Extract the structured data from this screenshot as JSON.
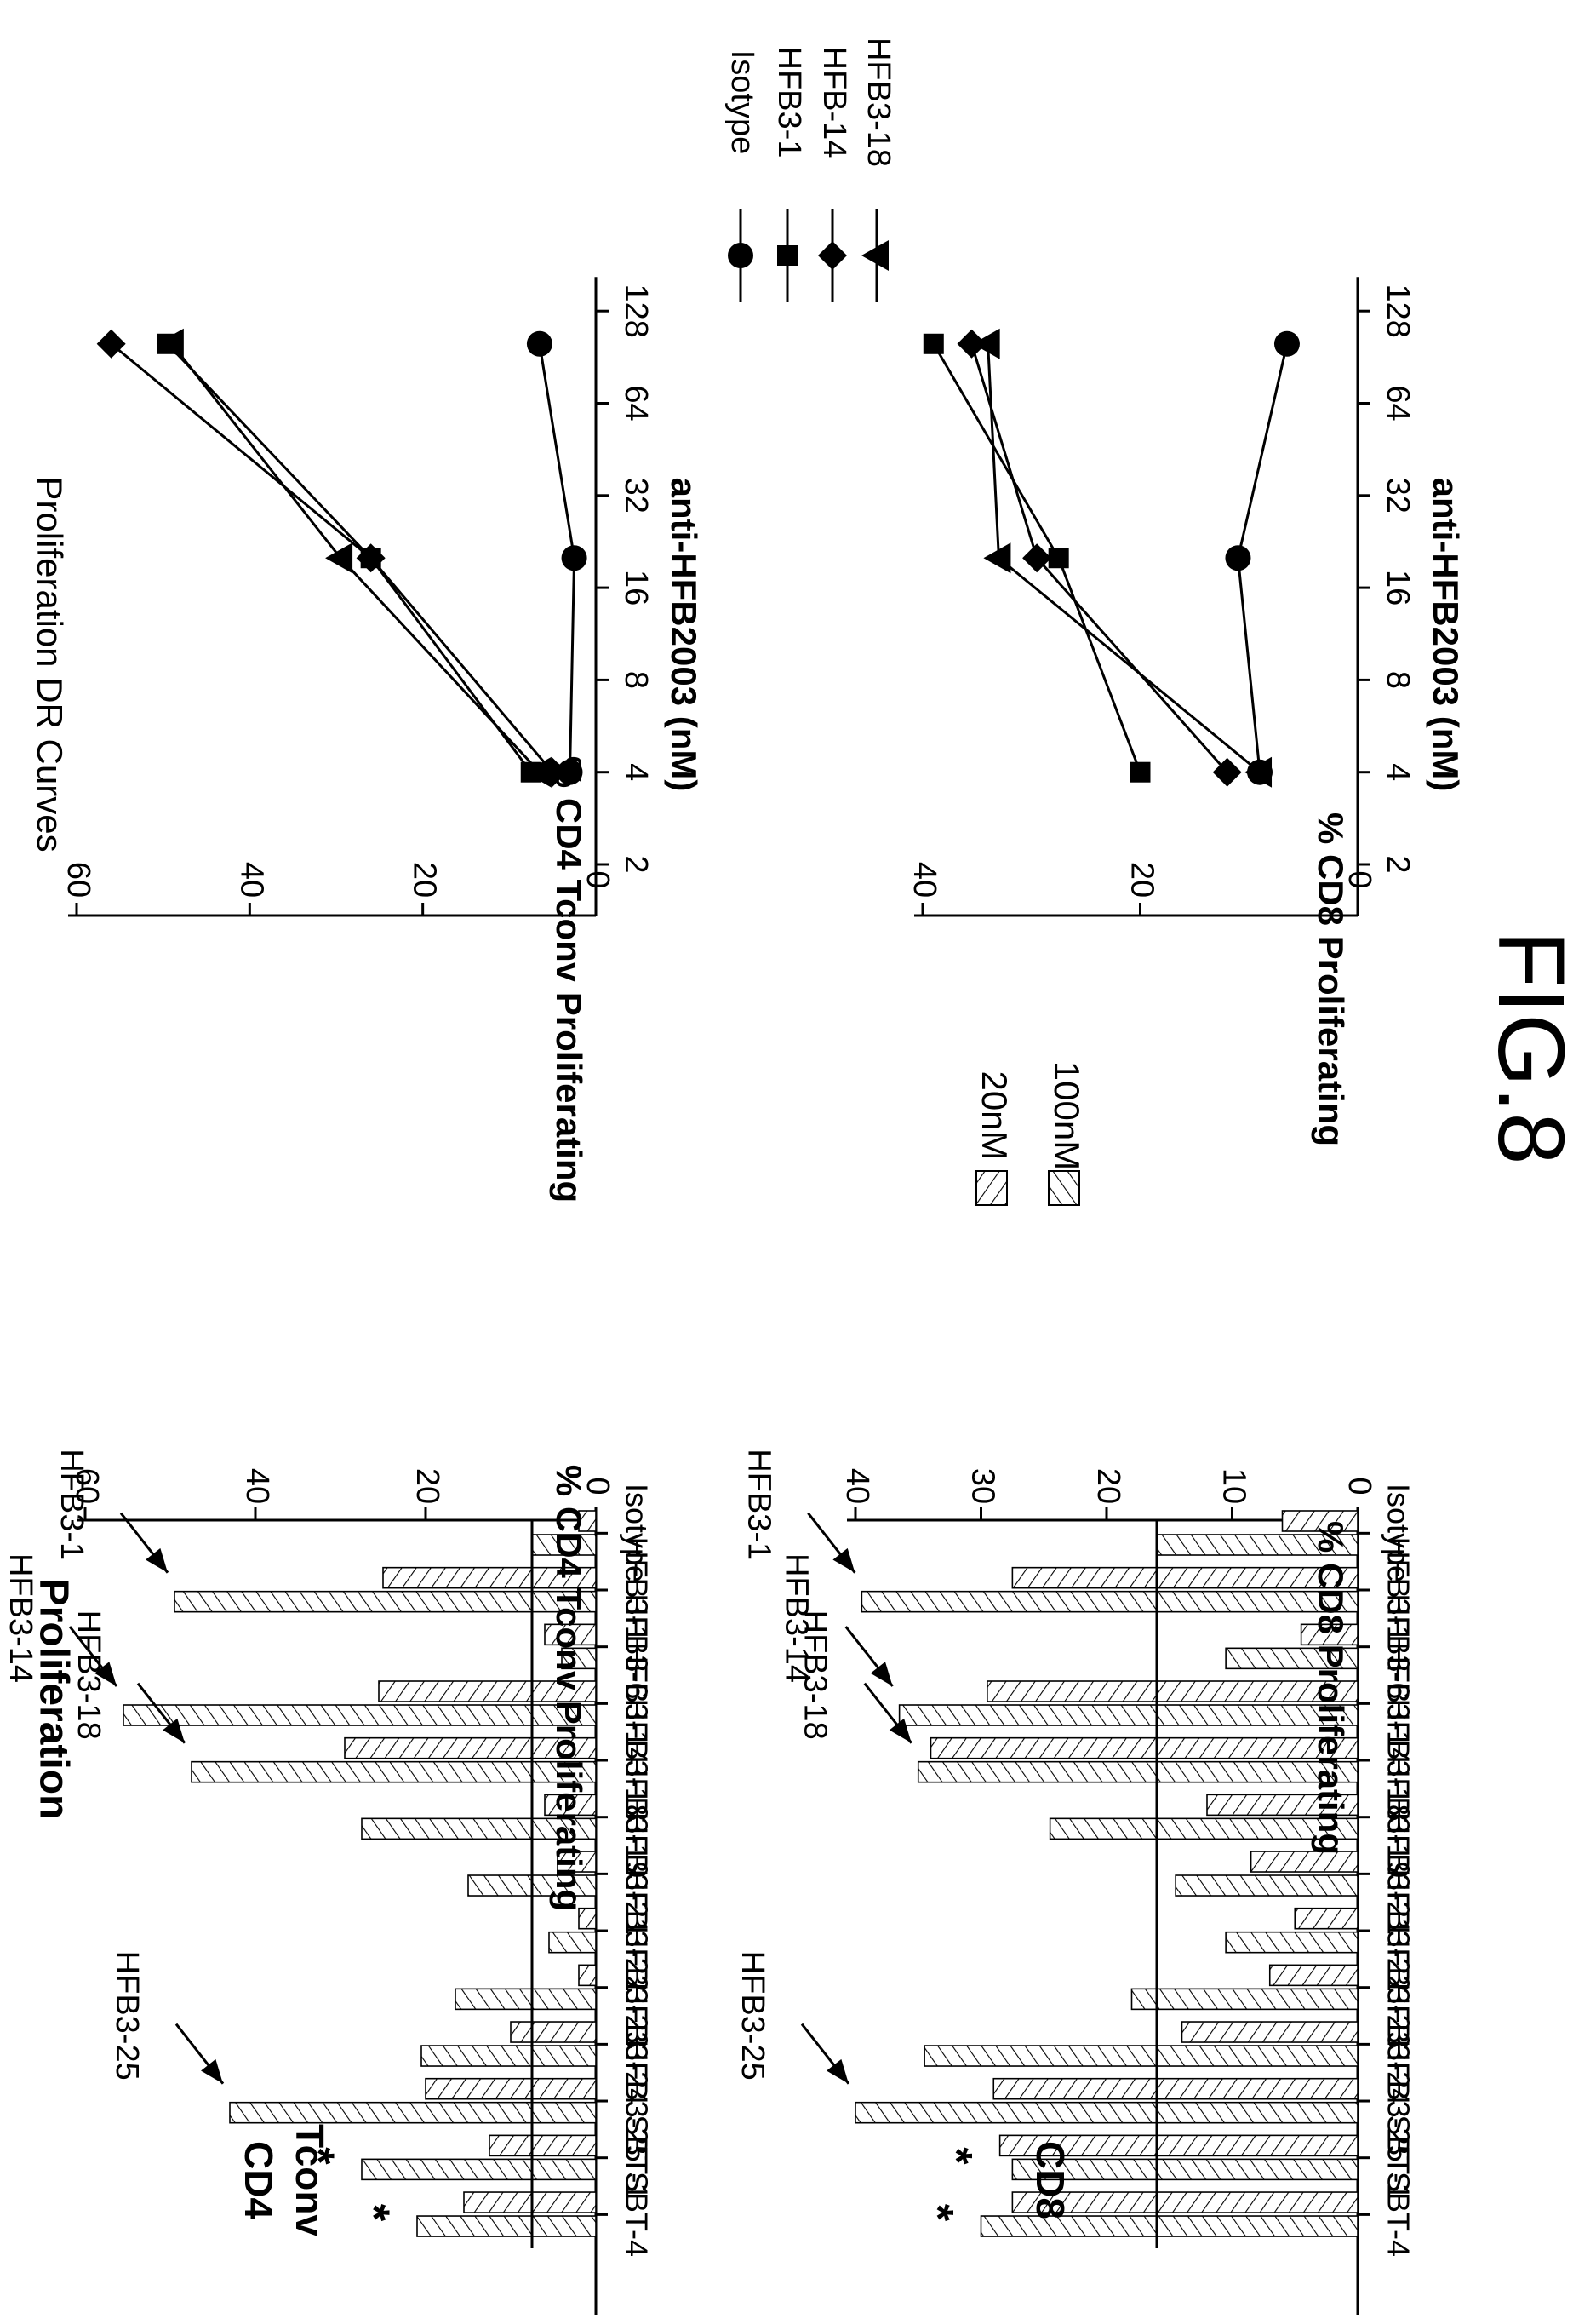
{
  "figure_label": "FIG.8",
  "panel_titles": {
    "bar": "Proliferation",
    "dr": "Proliferation DR Curves",
    "cd4_row": [
      "CD4",
      "Tconv"
    ],
    "cd8_row": "CD8"
  },
  "bar_legend": [
    {
      "label": "20nM",
      "pattern": "hatch-a"
    },
    {
      "label": "100nM",
      "pattern": "hatch-b"
    }
  ],
  "bar_categories": [
    "Isotype",
    "HFB3-1",
    "HFB3-6",
    "HFB3-14",
    "HFB3-18",
    "HFB3-19",
    "HFB3-21",
    "HFB3-22",
    "HFB3-23",
    "HFB3-24",
    "HFB3-25",
    "SBT-1",
    "SBT-4"
  ],
  "asterisk": "*",
  "dr_series_names": [
    "Isotype",
    "HFB3-1",
    "HFB-14",
    "HFB3-18"
  ],
  "chart_data": [
    {
      "type": "bar",
      "panel": "CD4 Tconv Proliferation",
      "ylabel": "% CD4 Tconv Proliferating",
      "ylim": [
        0,
        60
      ],
      "yticks": [
        0,
        20,
        40,
        60
      ],
      "reference_line": 7.5,
      "categories": [
        "Isotype",
        "HFB3-1",
        "HFB3-6",
        "HFB3-14",
        "HFB3-18",
        "HFB3-19",
        "HFB3-21",
        "HFB3-22",
        "HFB3-23",
        "HFB3-24",
        "HFB3-25",
        "SBT-1",
        "SBT-4"
      ],
      "series": [
        {
          "name": "20nM",
          "values": [
            2,
            25,
            6,
            25.5,
            29.5,
            6,
            4.5,
            2,
            2,
            10,
            20,
            12.5,
            15.5
          ]
        },
        {
          "name": "100nM",
          "values": [
            7.5,
            49.5,
            4,
            55.5,
            47.5,
            27.5,
            15,
            5.5,
            16.5,
            20.5,
            43,
            27.5,
            21
          ]
        }
      ],
      "annotations": [
        {
          "text": "HFB3-1",
          "category": "HFB3-1"
        },
        {
          "text": "HFB3-14",
          "category": "HFB3-14"
        },
        {
          "text": "HFB3-18",
          "category": "HFB3-18"
        },
        {
          "text": "HFB3-25",
          "category": "HFB3-25"
        },
        {
          "text": "*",
          "category": "SBT-1"
        },
        {
          "text": "*",
          "category": "SBT-4"
        }
      ]
    },
    {
      "type": "bar",
      "panel": "CD8 Proliferation",
      "ylabel": "% CD8 Proliferating",
      "ylim": [
        0,
        40
      ],
      "yticks": [
        0,
        10,
        20,
        30,
        40
      ],
      "reference_line": 16,
      "categories": [
        "Isotype",
        "HFB3-1",
        "HFB3-6",
        "HFB3-14",
        "HFB3-18",
        "HFB3-19",
        "HFB3-21",
        "HFB3-22",
        "HFB3-23",
        "HFB3-24",
        "HFB3-25",
        "SBT-1",
        "SBT-4"
      ],
      "series": [
        {
          "name": "20nM",
          "values": [
            6,
            27.5,
            4.5,
            29.5,
            34,
            12,
            8.5,
            5,
            7,
            14,
            29,
            28.5,
            27.5
          ]
        },
        {
          "name": "100nM",
          "values": [
            16,
            39.5,
            10.5,
            36.5,
            35,
            24.5,
            14.5,
            10.5,
            18,
            34.5,
            40,
            27.5,
            30
          ]
        }
      ],
      "annotations": [
        {
          "text": "HFB3-1",
          "category": "HFB3-1"
        },
        {
          "text": "HFB3-14",
          "category": "HFB3-14"
        },
        {
          "text": "HFB3-18",
          "category": "HFB3-18"
        },
        {
          "text": "HFB3-25",
          "category": "HFB3-25"
        },
        {
          "text": "*",
          "category": "SBT-1"
        },
        {
          "text": "*",
          "category": "SBT-4"
        }
      ]
    },
    {
      "type": "line",
      "panel": "Proliferation DR Curves (CD4 Tconv)",
      "title": "Proliferation DR Curves",
      "xlabel": "anti-HFB2003 (nM)",
      "ylabel": "% CD4 Tconv Proliferating",
      "xscale": "log2",
      "xticks": [
        2,
        4,
        8,
        16,
        32,
        64,
        128
      ],
      "ylim": [
        0,
        60
      ],
      "yticks": [
        0,
        20,
        40,
        60
      ],
      "x": [
        4,
        20,
        100
      ],
      "series": [
        {
          "name": "Isotype",
          "marker": "circle",
          "values": [
            3,
            2.5,
            6.5
          ]
        },
        {
          "name": "HFB3-1",
          "marker": "square",
          "values": [
            7.5,
            26,
            49.5
          ]
        },
        {
          "name": "HFB-14",
          "marker": "diamond",
          "values": [
            5,
            26,
            56
          ]
        },
        {
          "name": "HFB3-18",
          "marker": "triangle",
          "values": [
            6.5,
            29.5,
            49
          ]
        }
      ]
    },
    {
      "type": "line",
      "panel": "Proliferation DR Curves (CD8)",
      "xlabel": "anti-HFB2003 (nM)",
      "ylabel": "% CD8 Proliferating",
      "xscale": "log2",
      "xticks": [
        2,
        4,
        8,
        16,
        32,
        64,
        128
      ],
      "ylim": [
        0,
        50
      ],
      "yticks": [
        0,
        20,
        40
      ],
      "x": [
        4,
        20,
        100
      ],
      "series": [
        {
          "name": "Isotype",
          "marker": "circle",
          "values": [
            9,
            11,
            6.5
          ]
        },
        {
          "name": "HFB3-1",
          "marker": "square",
          "values": [
            20,
            27.5,
            39
          ]
        },
        {
          "name": "HFB-14",
          "marker": "diamond",
          "values": [
            12,
            29.5,
            35.5
          ]
        },
        {
          "name": "HFB3-18",
          "marker": "triangle",
          "values": [
            9,
            33,
            34
          ]
        }
      ]
    }
  ]
}
